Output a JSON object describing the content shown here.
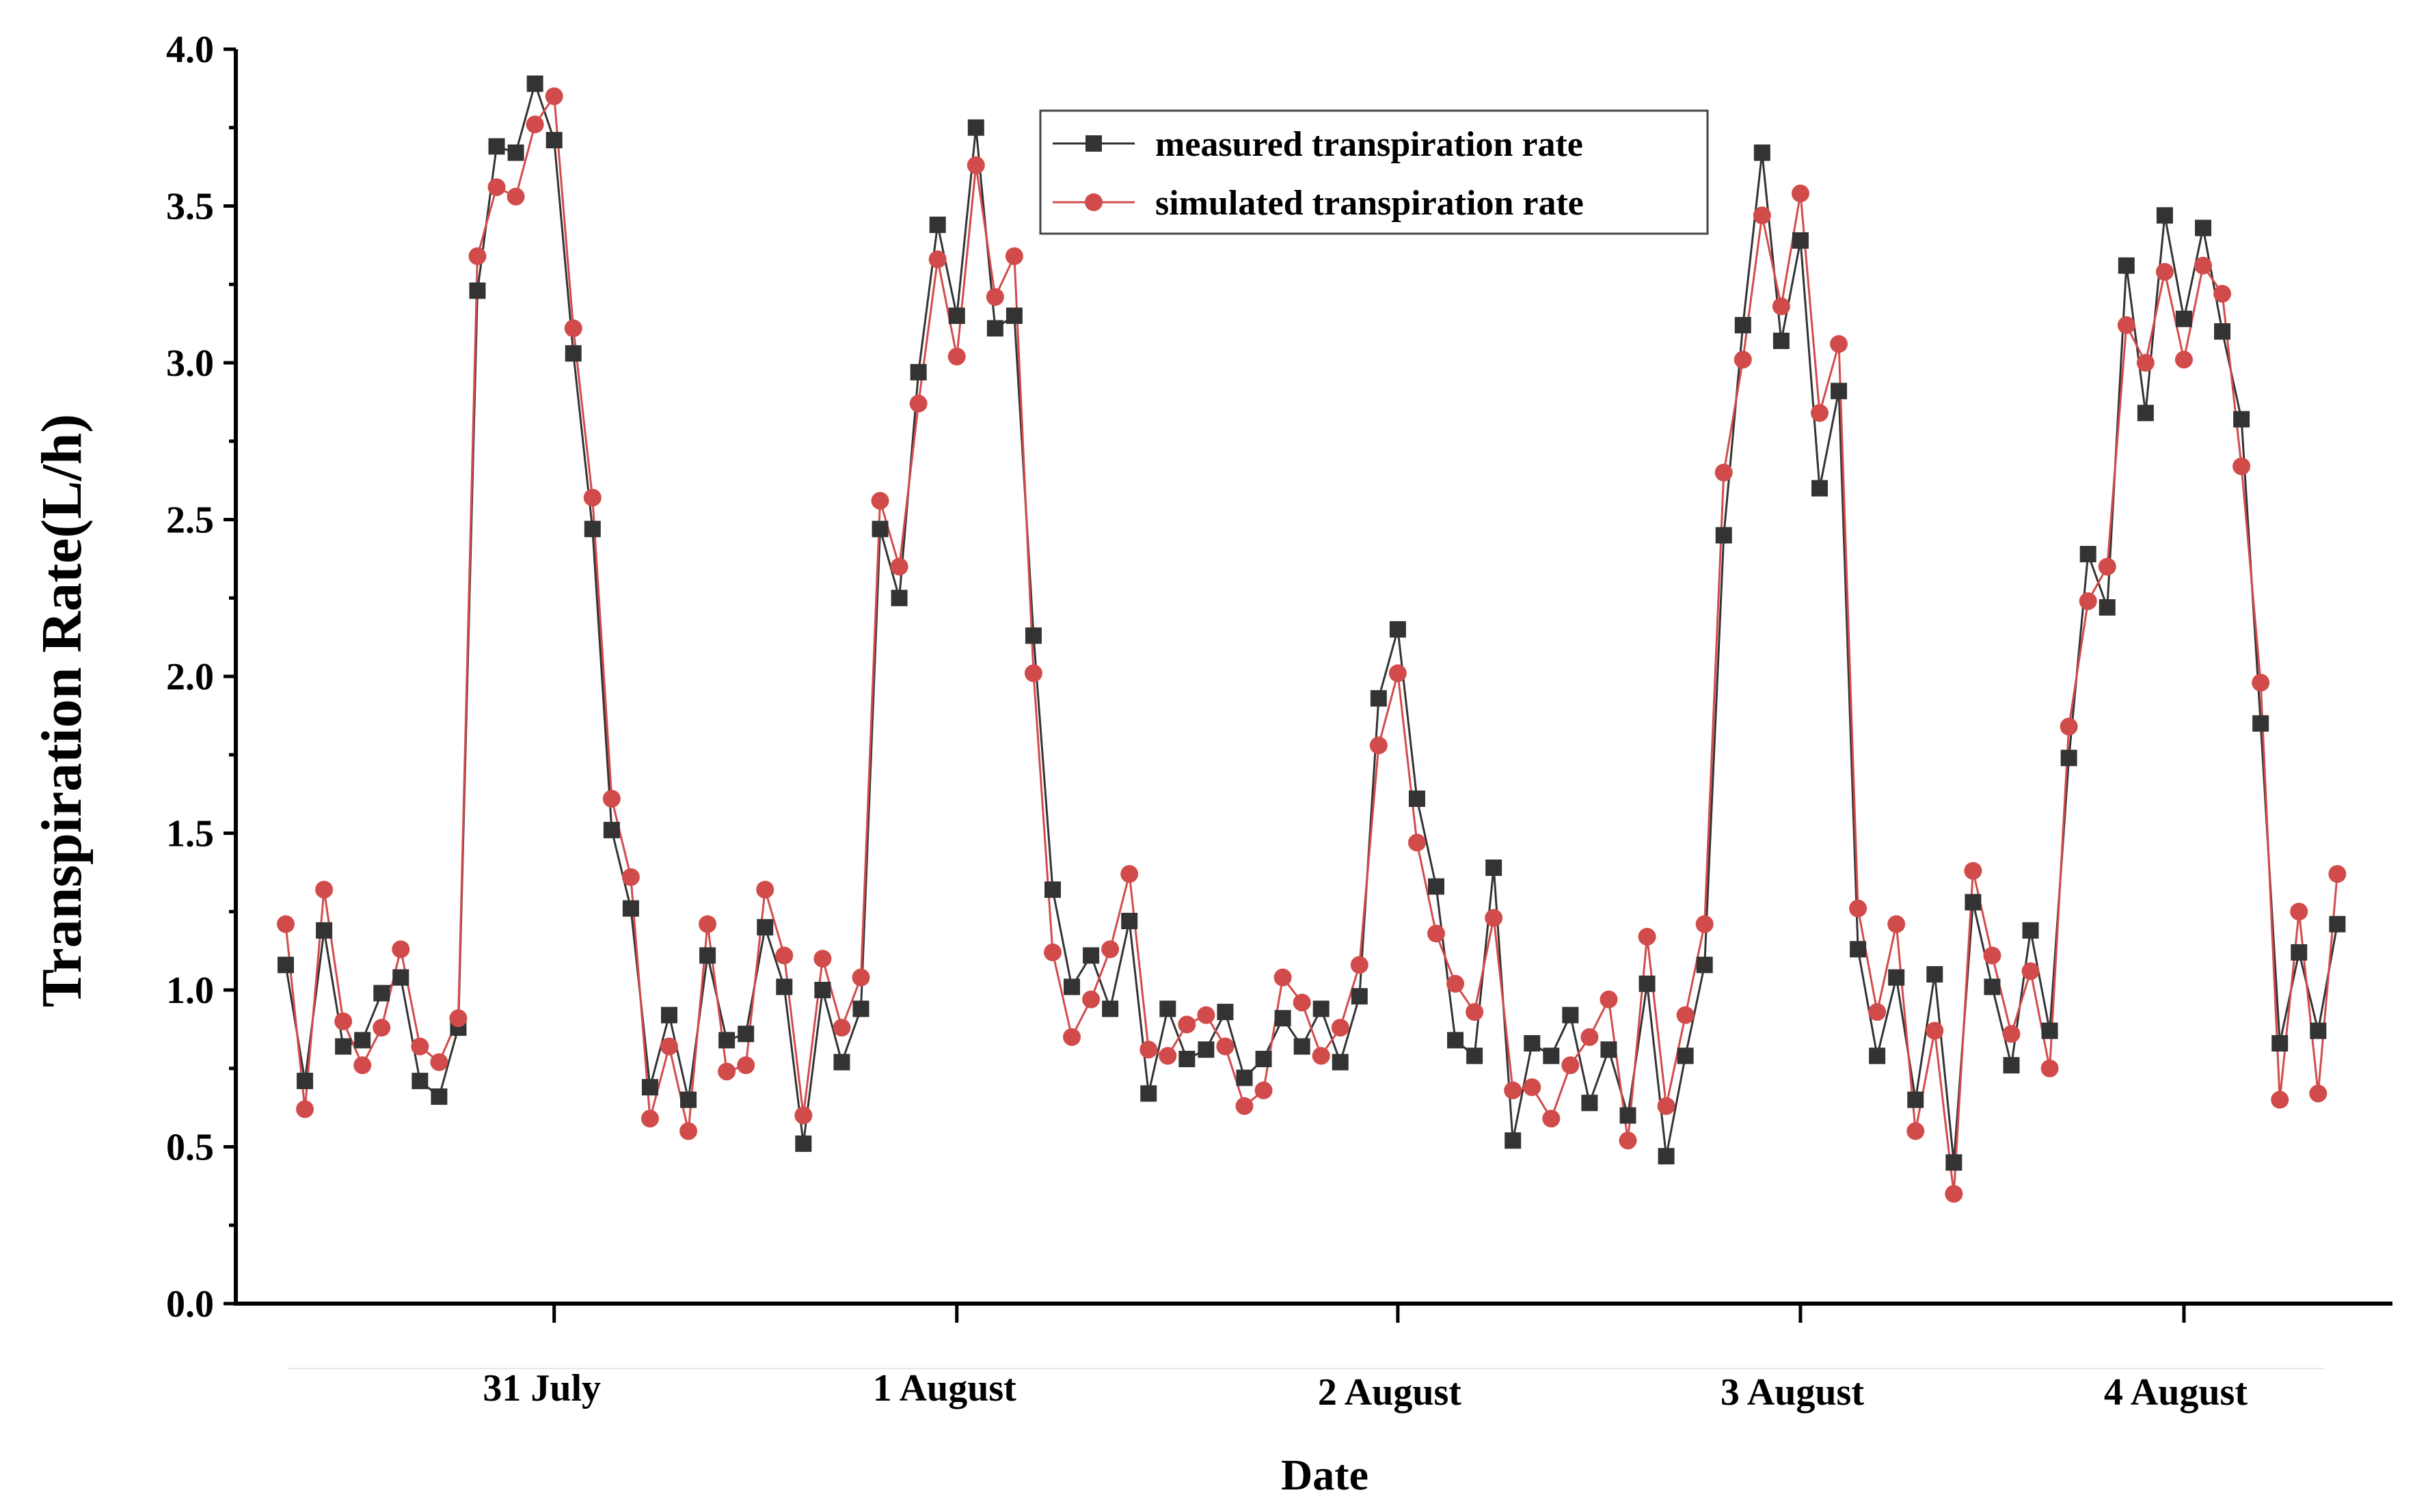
{
  "chart_data": {
    "type": "line",
    "xlabel": "Date",
    "ylabel": "Transpiration Rate(L/h)",
    "ylim": [
      0.0,
      4.0
    ],
    "yticks": [
      "0.0",
      "0.5",
      "1.0",
      "1.5",
      "2.0",
      "2.5",
      "3.0",
      "3.5",
      "4.0"
    ],
    "xticks": [
      {
        "label": "31 July",
        "index": 14
      },
      {
        "label": "1 August",
        "index": 35
      },
      {
        "label": "2 August",
        "index": 58
      },
      {
        "label": "3 August",
        "index": 79
      },
      {
        "label": "4 August",
        "index": 99
      }
    ],
    "legend_position": "top-right",
    "series": [
      {
        "name": "measured transpiration rate",
        "color": "#333333",
        "marker": "square",
        "values": [
          1.08,
          0.71,
          1.19,
          0.82,
          0.84,
          0.99,
          1.04,
          0.71,
          0.66,
          0.88,
          3.23,
          3.69,
          3.67,
          3.89,
          3.71,
          3.03,
          2.47,
          1.51,
          1.26,
          0.69,
          0.92,
          0.65,
          1.11,
          0.84,
          0.86,
          1.2,
          1.01,
          0.51,
          1.0,
          0.77,
          0.94,
          2.47,
          2.25,
          2.97,
          3.44,
          3.15,
          3.75,
          3.11,
          3.15,
          2.13,
          1.32,
          1.01,
          1.11,
          0.94,
          1.22,
          0.67,
          0.94,
          0.78,
          0.81,
          0.93,
          0.72,
          0.78,
          0.91,
          0.82,
          0.94,
          0.77,
          0.98,
          1.93,
          2.15,
          1.61,
          1.33,
          0.84,
          0.79,
          1.39,
          0.52,
          0.83,
          0.79,
          0.92,
          0.64,
          0.81,
          0.6,
          1.02,
          0.47,
          0.79,
          1.08,
          2.45,
          3.12,
          3.67,
          3.07,
          3.39,
          2.6,
          2.91,
          1.13,
          0.79,
          1.04,
          0.65,
          1.05,
          0.45,
          1.28,
          1.01,
          0.76,
          1.19,
          0.87,
          1.74,
          2.39,
          2.22,
          3.31,
          2.84,
          3.47,
          3.14,
          3.43,
          3.1,
          2.82,
          1.85,
          0.83,
          1.12,
          0.87,
          1.21
        ]
      },
      {
        "name": "simulated transpiration rate",
        "color": "#d24b4b",
        "marker": "circle",
        "values": [
          1.21,
          0.62,
          1.32,
          0.9,
          0.76,
          0.88,
          1.13,
          0.82,
          0.77,
          0.91,
          3.34,
          3.56,
          3.53,
          3.76,
          3.85,
          3.11,
          2.57,
          1.61,
          1.36,
          0.59,
          0.82,
          0.55,
          1.21,
          0.74,
          0.76,
          1.32,
          1.11,
          0.6,
          1.1,
          0.88,
          1.04,
          2.56,
          2.35,
          2.87,
          3.33,
          3.02,
          3.63,
          3.21,
          3.34,
          2.01,
          1.12,
          0.85,
          0.97,
          1.13,
          1.37,
          0.81,
          0.79,
          0.89,
          0.92,
          0.82,
          0.63,
          0.68,
          1.04,
          0.96,
          0.79,
          0.88,
          1.08,
          1.78,
          2.01,
          1.47,
          1.18,
          1.02,
          0.93,
          1.23,
          0.68,
          0.69,
          0.59,
          0.76,
          0.85,
          0.97,
          0.52,
          1.17,
          0.63,
          0.92,
          1.21,
          2.65,
          3.01,
          3.47,
          3.18,
          3.54,
          2.84,
          3.06,
          1.26,
          0.93,
          1.21,
          0.55,
          0.87,
          0.35,
          1.38,
          1.11,
          0.86,
          1.06,
          0.75,
          1.84,
          2.24,
          2.35,
          3.12,
          3.0,
          3.29,
          3.01,
          3.31,
          3.22,
          2.67,
          1.98,
          0.65,
          1.25,
          0.67,
          1.37
        ]
      }
    ]
  }
}
